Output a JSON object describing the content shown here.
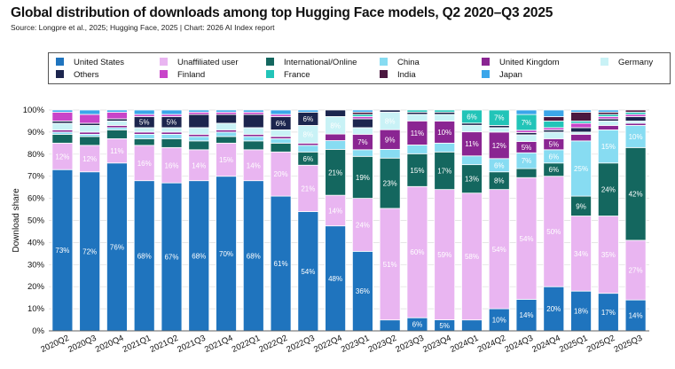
{
  "title": "Global distribution of downloads among top Hugging Face models, Q2 2020–Q3 2025",
  "source": "Source: Longpre et al., 2025; Hugging Face, 2025 | Chart: 2026 AI Index report",
  "colors": {
    "United States": "#1f74be",
    "Unaffiliated user": "#e9b5f1",
    "International/Online": "#14675f",
    "China": "#87dcf2",
    "United Kingdom": "#8a2592",
    "Germany": "#c9f2f6",
    "Others": "#1c254e",
    "Finland": "#c844c9",
    "France": "#22c4b8",
    "India": "#4b1740",
    "Japan": "#3ba6ea"
  },
  "chart_data": {
    "type": "bar",
    "stacked": true,
    "ylabel": "Download share",
    "ylim": [
      0,
      100
    ],
    "yticks": [
      "0%",
      "10%",
      "20%",
      "30%",
      "40%",
      "50%",
      "60%",
      "70%",
      "80%",
      "90%",
      "100%"
    ],
    "legend_position": "top",
    "legend_order": [
      "United States",
      "Unaffiliated user",
      "International/Online",
      "China",
      "United Kingdom",
      "Germany",
      "Others",
      "Finland",
      "France",
      "India",
      "Japan"
    ],
    "categories": [
      "2020Q2",
      "2020Q3",
      "2020Q4",
      "2021Q1",
      "2021Q2",
      "2021Q3",
      "2021Q4",
      "2022Q1",
      "2022Q2",
      "2022Q3",
      "2022Q4",
      "2023Q1",
      "2023Q2",
      "2023Q3",
      "2023Q4",
      "2024Q1",
      "2024Q2",
      "2024Q3",
      "2024Q4",
      "2025Q1",
      "2025Q2",
      "2025Q3"
    ],
    "series": [
      {
        "name": "United States",
        "values": [
          73,
          72,
          76,
          68,
          67,
          68,
          70,
          68,
          61,
          54,
          48,
          36,
          5,
          6,
          5,
          5,
          10,
          14,
          20,
          18,
          17,
          14
        ],
        "labels": [
          "73%",
          "72%",
          "76%",
          "68%",
          "67%",
          "68%",
          "70%",
          "68%",
          "61%",
          "54%",
          "48%",
          "36%",
          "",
          "6%",
          "5%",
          "",
          "10%",
          "14%",
          "20%",
          "18%",
          "17%",
          "14%"
        ]
      },
      {
        "name": "Unaffiliated user",
        "values": [
          12,
          12,
          11,
          16,
          16,
          14,
          15,
          14,
          20,
          21,
          14,
          24,
          51,
          60,
          59,
          58,
          54,
          54,
          50,
          34,
          35,
          27
        ],
        "labels": [
          "12%",
          "12%",
          "11%",
          "16%",
          "16%",
          "14%",
          "15%",
          "14%",
          "20%",
          "21%",
          "14%",
          "24%",
          "51%",
          "60%",
          "59%",
          "58%",
          "54%",
          "54%",
          "50%",
          "34%",
          "35%",
          "27%"
        ]
      },
      {
        "name": "International/Online",
        "values": [
          4,
          4,
          4,
          3,
          4,
          4,
          3,
          4,
          4,
          6,
          21,
          19,
          23,
          15,
          17,
          13,
          8,
          4,
          6,
          9,
          24,
          42
        ],
        "labels": [
          "",
          "",
          "",
          "",
          "",
          "",
          "",
          "",
          "",
          "6%",
          "21%",
          "19%",
          "23%",
          "15%",
          "17%",
          "13%",
          "8%",
          "",
          "6%",
          "9%",
          "24%",
          "42%"
        ]
      },
      {
        "name": "China",
        "values": [
          1,
          1,
          1,
          2,
          2,
          2,
          2,
          2,
          2,
          3,
          4,
          3,
          4,
          4,
          4,
          4,
          6,
          7,
          6,
          25,
          15,
          10
        ],
        "labels": [
          "",
          "",
          "",
          "",
          "",
          "",
          "",
          "",
          "",
          "",
          "",
          "",
          "",
          "",
          "",
          "",
          "6%",
          "7%",
          "6%",
          "25%",
          "15%",
          "10%"
        ]
      },
      {
        "name": "United Kingdom",
        "values": [
          1,
          1,
          1,
          1,
          1,
          1,
          1,
          1,
          1,
          1,
          3,
          7,
          9,
          11,
          10,
          11,
          12,
          5,
          5,
          3,
          2,
          1
        ],
        "labels": [
          "",
          "",
          "",
          "",
          "",
          "",
          "",
          "",
          "",
          "",
          "",
          "7%",
          "9%",
          "11%",
          "10%",
          "11%",
          "12%",
          "5%",
          "5%",
          "",
          "",
          ""
        ]
      },
      {
        "name": "Germany",
        "values": [
          3,
          3,
          2,
          2,
          2,
          3,
          3,
          3,
          3,
          8,
          8,
          3,
          8,
          3,
          3,
          3,
          2,
          3,
          3,
          1,
          2,
          1
        ],
        "labels": [
          "",
          "",
          "",
          "",
          "",
          "",
          "",
          "",
          "",
          "8%",
          "8%",
          "",
          "8%",
          "",
          "",
          "",
          "",
          "",
          "",
          "",
          "",
          ""
        ]
      },
      {
        "name": "Others",
        "values": [
          1,
          1,
          1,
          5,
          5,
          6,
          4,
          6,
          6,
          6,
          3,
          4,
          1,
          1,
          1,
          1,
          1,
          1,
          1,
          2,
          1,
          2
        ],
        "labels": [
          "",
          "",
          "",
          "5%",
          "5%",
          "",
          "",
          "",
          "6%",
          "6%",
          "",
          "",
          "",
          "",
          "",
          "",
          "",
          "",
          "",
          "",
          "",
          ""
        ]
      },
      {
        "name": "Finland",
        "values": [
          4,
          4,
          3,
          1,
          1,
          1,
          1,
          1,
          1,
          0,
          0,
          1,
          0,
          0,
          0,
          0,
          0,
          1,
          1,
          2,
          1,
          1
        ],
        "labels": [
          "",
          "",
          "",
          "",
          "",
          "",
          "",
          "",
          "",
          "",
          "",
          "",
          "",
          "",
          "",
          "",
          "",
          "",
          "",
          "",
          "",
          ""
        ]
      },
      {
        "name": "France",
        "values": [
          0,
          0,
          0,
          0,
          0,
          0,
          0,
          0,
          0,
          0,
          0,
          1,
          0,
          1,
          1,
          6,
          7,
          7,
          3,
          1,
          1,
          1
        ],
        "labels": [
          "",
          "",
          "",
          "",
          "",
          "",
          "",
          "",
          "",
          "",
          "",
          "",
          "",
          "",
          "",
          "6%",
          "7%",
          "7%",
          "",
          "",
          "",
          ""
        ]
      },
      {
        "name": "India",
        "values": [
          0,
          0,
          0,
          0,
          0,
          0,
          0,
          0,
          0,
          0,
          0,
          1,
          0,
          0,
          0,
          0,
          0,
          0,
          2,
          4,
          1,
          1
        ],
        "labels": [
          "",
          "",
          "",
          "",
          "",
          "",
          "",
          "",
          "",
          "",
          "",
          "",
          "",
          "",
          "",
          "",
          "",
          "",
          "",
          "",
          "",
          ""
        ]
      },
      {
        "name": "Japan",
        "values": [
          1,
          2,
          1,
          2,
          2,
          1,
          1,
          1,
          2,
          1,
          0,
          1,
          0,
          0,
          0,
          0,
          0,
          2,
          3,
          1,
          1,
          0
        ],
        "labels": [
          "",
          "",
          "",
          "",
          "",
          "",
          "",
          "",
          "",
          "",
          "",
          "",
          "",
          "",
          "",
          "",
          "",
          "",
          "",
          "",
          "",
          ""
        ]
      }
    ]
  }
}
